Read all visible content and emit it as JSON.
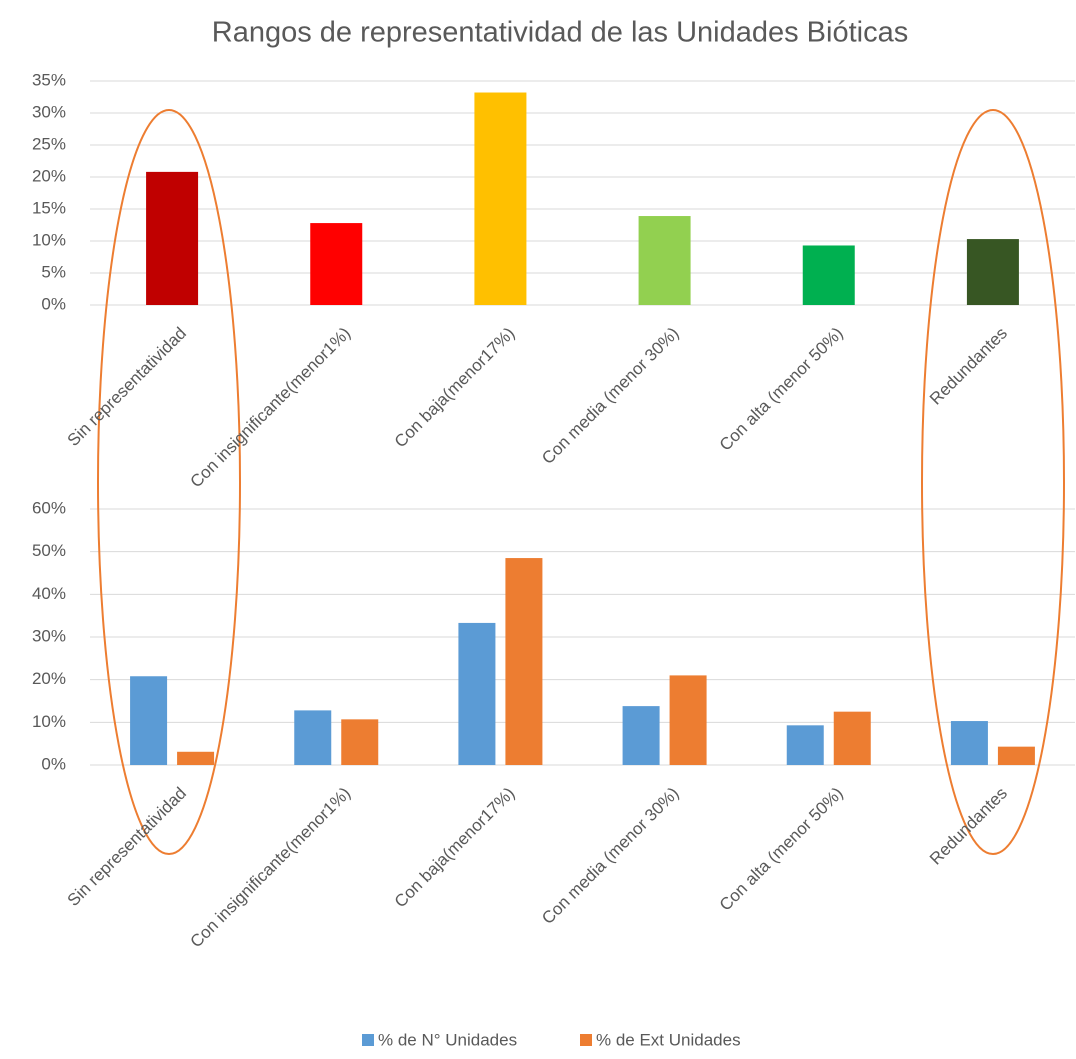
{
  "chart_data": [
    {
      "type": "bar",
      "title": "Rangos de representatividad de las Unidades Bióticas",
      "categories": [
        "Sin representatividad",
        "Con insignificante(menor1%)",
        "Con baja(menor17%)",
        "Con media (menor 30%)",
        "Con alta (menor 50%)",
        "Redundantes"
      ],
      "values": [
        20.8,
        12.8,
        33.2,
        13.9,
        9.3,
        10.3
      ],
      "colors": [
        "#c00000",
        "#ff0000",
        "#ffc000",
        "#92d050",
        "#00b050",
        "#375623"
      ],
      "ylim": [
        0,
        35
      ],
      "yticks": [
        {
          "value": 0,
          "label": "0%"
        },
        {
          "value": 5,
          "label": "5%"
        },
        {
          "value": 10,
          "label": "10%"
        },
        {
          "value": 15,
          "label": "15%"
        },
        {
          "value": 20,
          "label": "20%"
        },
        {
          "value": 25,
          "label": "25%"
        },
        {
          "value": 30,
          "label": "30%"
        },
        {
          "value": 35,
          "label": "35%"
        }
      ],
      "grid": true
    },
    {
      "type": "grouped_bar",
      "categories": [
        "Sin representatividad",
        "Con insignificante(menor1%)",
        "Con baja(menor17%)",
        "Con media (menor 30%)",
        "Con alta (menor 50%)",
        "Redundantes"
      ],
      "series": [
        {
          "name": "% de N° Unidades",
          "color": "#5b9bd5",
          "values": [
            20.8,
            12.8,
            33.3,
            13.8,
            9.3,
            10.3
          ]
        },
        {
          "name": "% de Ext Unidades",
          "color": "#ed7d31",
          "values": [
            3.1,
            10.7,
            48.5,
            21.0,
            12.5,
            4.3
          ]
        }
      ],
      "ylim": [
        0,
        60
      ],
      "yticks": [
        {
          "value": 0,
          "label": "0%"
        },
        {
          "value": 10,
          "label": "10%"
        },
        {
          "value": 20,
          "label": "20%"
        },
        {
          "value": 30,
          "label": "30%"
        },
        {
          "value": 40,
          "label": "40%"
        },
        {
          "value": 50,
          "label": "50%"
        },
        {
          "value": 60,
          "label": "60%"
        }
      ],
      "grid": true,
      "legend": "bottom"
    }
  ]
}
